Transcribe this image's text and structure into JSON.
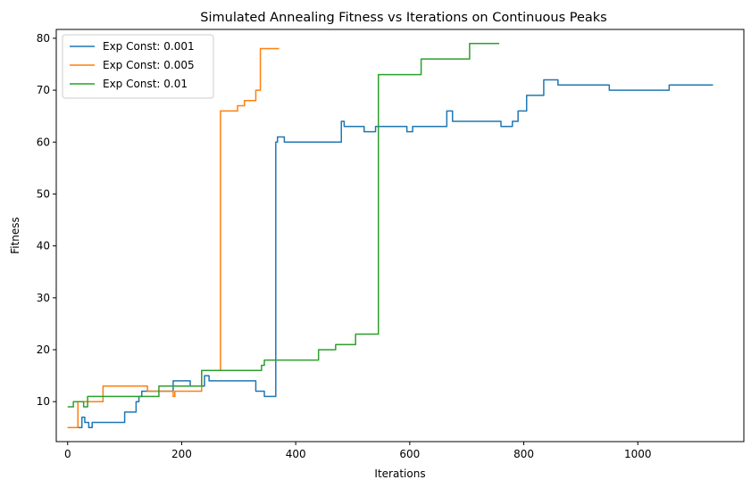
{
  "chart_data": {
    "type": "line",
    "title": "Simulated Annealing Fitness vs Iterations on Continuous Peaks",
    "xlabel": "Iterations",
    "ylabel": "Fitness",
    "xlim": [
      -20,
      1186
    ],
    "ylim": [
      2.3,
      81.7
    ],
    "xticks": [
      0,
      200,
      400,
      600,
      800,
      1000
    ],
    "yticks": [
      10,
      20,
      30,
      40,
      50,
      60,
      70,
      80
    ],
    "grid": false,
    "legend_position": "top-left",
    "series": [
      {
        "name": "Exp Const: 0.001",
        "color": "#1f77b4",
        "x": [
          0,
          25,
          25,
          30,
          30,
          37,
          37,
          43,
          43,
          100,
          100,
          120,
          120,
          125,
          125,
          130,
          130,
          185,
          185,
          215,
          215,
          240,
          240,
          248,
          248,
          330,
          330,
          345,
          345,
          365,
          365,
          368,
          368,
          380,
          380,
          402,
          402,
          480,
          480,
          485,
          485,
          520,
          520,
          540,
          540,
          595,
          595,
          605,
          605,
          665,
          665,
          675,
          675,
          760,
          760,
          780,
          780,
          790,
          790,
          805,
          805,
          835,
          835,
          860,
          860,
          950,
          950,
          1055,
          1055,
          1132
        ],
        "y": [
          5,
          5,
          7,
          7,
          6,
          6,
          5,
          5,
          6,
          6,
          8,
          8,
          10,
          10,
          11,
          11,
          12,
          12,
          14,
          14,
          13,
          13,
          15,
          15,
          14,
          14,
          12,
          12,
          11,
          11,
          60,
          60,
          61,
          61,
          60,
          60,
          60,
          60,
          64,
          64,
          63,
          63,
          62,
          62,
          63,
          63,
          62,
          62,
          63,
          63,
          66,
          66,
          64,
          64,
          63,
          63,
          64,
          64,
          66,
          66,
          69,
          69,
          72,
          72,
          71,
          71,
          70,
          70,
          71,
          71
        ]
      },
      {
        "name": "Exp Const: 0.005",
        "color": "#ff7f0e",
        "x": [
          0,
          18,
          18,
          62,
          62,
          140,
          140,
          185,
          185,
          188,
          188,
          235,
          235,
          268,
          268,
          298,
          298,
          310,
          310,
          330,
          330,
          338,
          338,
          342,
          342,
          371
        ],
        "y": [
          5,
          5,
          10,
          10,
          13,
          13,
          12,
          12,
          11,
          11,
          12,
          12,
          16,
          16,
          66,
          66,
          67,
          67,
          68,
          68,
          70,
          70,
          78,
          78,
          78,
          78
        ]
      },
      {
        "name": "Exp Const: 0.01",
        "color": "#2ca02c",
        "x": [
          0,
          10,
          10,
          28,
          28,
          35,
          35,
          160,
          160,
          235,
          235,
          340,
          340,
          345,
          345,
          440,
          440,
          470,
          470,
          505,
          505,
          545,
          545,
          620,
          620,
          705,
          705,
          757
        ],
        "y": [
          9,
          9,
          10,
          10,
          9,
          9,
          11,
          11,
          13,
          13,
          16,
          16,
          17,
          17,
          18,
          18,
          20,
          20,
          21,
          21,
          23,
          23,
          73,
          73,
          76,
          76,
          79,
          79
        ]
      }
    ]
  }
}
